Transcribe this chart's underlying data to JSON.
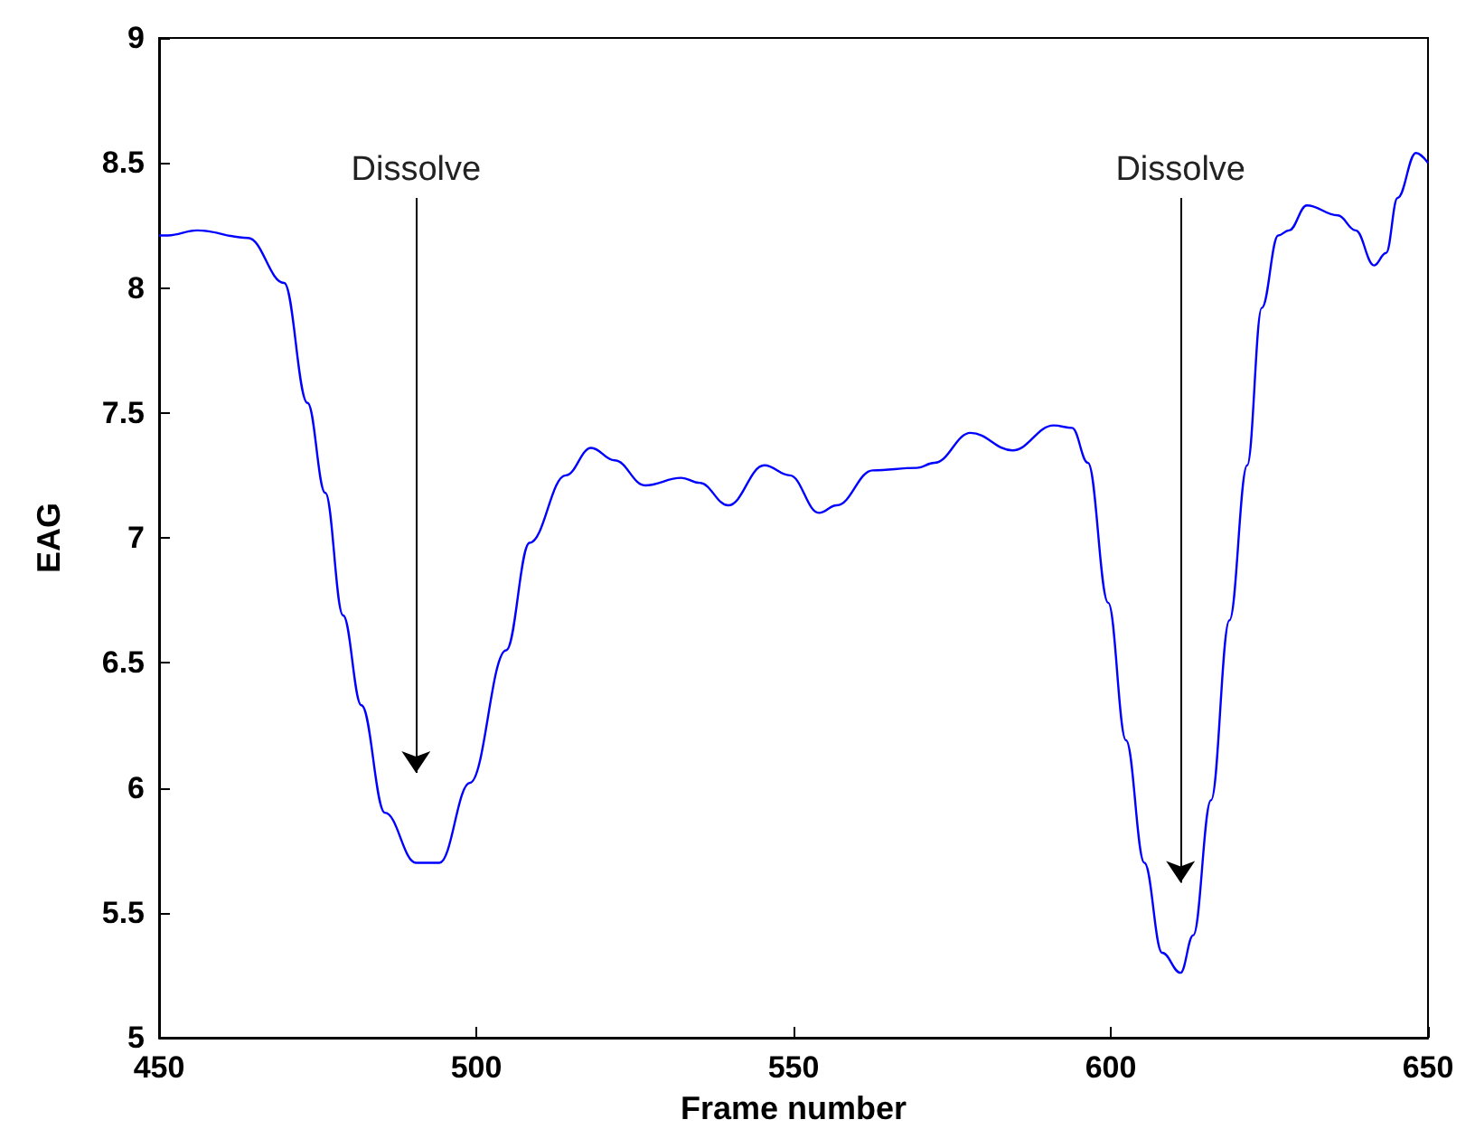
{
  "chart_data": {
    "type": "line",
    "xlabel": "Frame number",
    "ylabel": "EAG",
    "xlim": [
      450,
      650
    ],
    "xticks": [
      450,
      500,
      550,
      600,
      650
    ],
    "ylim": [
      5,
      9
    ],
    "yticks": [
      5,
      5.5,
      6,
      6.5,
      7,
      7.5,
      8,
      8.5,
      9
    ],
    "grid": false,
    "marker": "none",
    "line_style": "solid",
    "series": [
      {
        "color": "#0000ff",
        "x": [
          450,
          451.4,
          456,
          464,
          469.7,
          473.4,
          476.2,
          479,
          481.9,
          485.6,
          490.5,
          494.2,
          499,
          504.7,
          508.4,
          514.1,
          518.1,
          521.8,
          526.6,
          532.3,
          535.2,
          539.7,
          545.4,
          549.4,
          554,
          556.8,
          562.5,
          569.4,
          572.2,
          577.9,
          584.5,
          591,
          593.9,
          596.4,
          599.6,
          602.4,
          605.3,
          608.1,
          611,
          613,
          615.8,
          618.7,
          621.5,
          623.8,
          626.4,
          628.1,
          630.9,
          635.8,
          638.6,
          641.5,
          643.4,
          645.2,
          648.1,
          650
        ],
        "values": [
          8.21,
          8.21,
          8.23,
          8.2,
          8.02,
          7.54,
          7.18,
          6.69,
          6.33,
          5.9,
          5.7,
          5.7,
          6.02,
          6.55,
          6.98,
          7.25,
          7.36,
          7.31,
          7.21,
          7.24,
          7.22,
          7.13,
          7.29,
          7.25,
          7.1,
          7.13,
          7.27,
          7.28,
          7.3,
          7.42,
          7.35,
          7.45,
          7.44,
          7.3,
          6.74,
          6.19,
          5.7,
          5.34,
          5.26,
          5.41,
          5.95,
          6.67,
          7.29,
          7.92,
          8.21,
          8.23,
          8.33,
          8.29,
          8.23,
          8.09,
          8.14,
          8.36,
          8.54,
          8.5
        ]
      }
    ],
    "annotations": [
      "Dissolve",
      "Dissolve"
    ]
  }
}
